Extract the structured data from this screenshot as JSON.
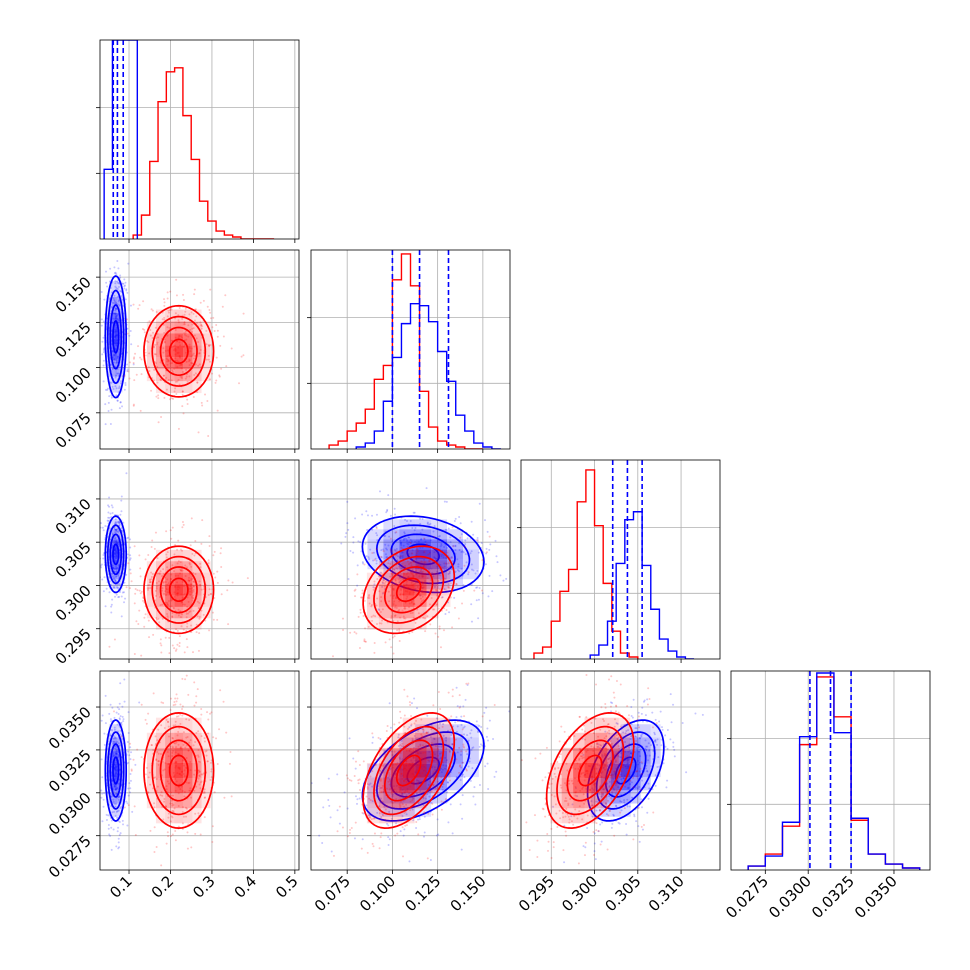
{
  "chart_data": {
    "type": "corner",
    "parameters": [
      {
        "ticks": [
          0.1,
          0.2,
          0.3,
          0.4,
          0.5
        ],
        "tick_labels": [
          "0.1",
          "0.2",
          "0.3",
          "0.4",
          "0.5"
        ],
        "range": [
          0.03,
          0.51
        ]
      },
      {
        "ticks": [
          0.075,
          0.1,
          0.125,
          0.15
        ],
        "tick_labels": [
          "0.075",
          "0.100",
          "0.125",
          "0.150"
        ],
        "range": [
          0.055,
          0.165
        ]
      },
      {
        "ticks": [
          0.295,
          0.3,
          0.305,
          0.31
        ],
        "tick_labels": [
          "0.295",
          "0.300",
          "0.305",
          "0.310"
        ],
        "range": [
          0.2915,
          0.3145
        ]
      },
      {
        "ticks": [
          0.0275,
          0.03,
          0.0325,
          0.035
        ],
        "tick_labels": [
          "0.0275",
          "0.0300",
          "0.0325",
          "0.0350"
        ],
        "range": [
          0.0255,
          0.0371
        ]
      }
    ],
    "series": [
      {
        "color": "#0000ff",
        "marginals": [
          {
            "edges": [
              0.04,
              0.06,
              0.08,
              0.1,
              0.12
            ],
            "counts": [
              0.35,
              1.0,
              1.0,
              1.0,
              0.0
            ]
          },
          {
            "edges": [
              0.08,
              0.085,
              0.09,
              0.095,
              0.1,
              0.105,
              0.11,
              0.115,
              0.12,
              0.125,
              0.13,
              0.135,
              0.14,
              0.145,
              0.15,
              0.155,
              0.16
            ],
            "counts": [
              0.01,
              0.03,
              0.09,
              0.24,
              0.46,
              0.63,
              0.73,
              0.72,
              0.64,
              0.49,
              0.34,
              0.17,
              0.09,
              0.03,
              0.01,
              0.0
            ]
          },
          {
            "edges": [
              0.2995,
              0.3005,
              0.3015,
              0.3025,
              0.3035,
              0.3045,
              0.3055,
              0.3065,
              0.3075,
              0.3085,
              0.3095,
              0.3105,
              0.3115
            ],
            "counts": [
              0.02,
              0.07,
              0.19,
              0.48,
              0.7,
              0.74,
              0.47,
              0.25,
              0.1,
              0.04,
              0.01,
              0.0
            ]
          },
          {
            "edges": [
              0.0265,
              0.0275,
              0.0285,
              0.0295,
              0.0305,
              0.0315,
              0.0325,
              0.0335,
              0.0345,
              0.0355,
              0.0365
            ],
            "counts": [
              0.02,
              0.07,
              0.24,
              0.67,
              0.99,
              0.69,
              0.26,
              0.08,
              0.03,
              0.01
            ]
          }
        ],
        "quantiles": [
          [
            0.062,
            0.072,
            0.086
          ],
          [
            0.1,
            0.115,
            0.131
          ],
          [
            0.3021,
            0.3038,
            0.3055
          ],
          [
            0.0301,
            0.0313,
            0.0325
          ]
        ],
        "centers": [
          0.068,
          0.117,
          0.3036,
          0.0313
        ],
        "spreads": [
          0.012,
          0.016,
          0.0021,
          0.0014
        ],
        "correlations": [
          [
            0,
            2,
            0.0
          ],
          [
            1,
            2,
            -0.2
          ],
          [
            1,
            3,
            0.5
          ],
          [
            2,
            3,
            0.45
          ]
        ]
      },
      {
        "color": "#ff0000",
        "marginals": [
          {
            "edges": [
              0.11,
              0.13,
              0.15,
              0.17,
              0.19,
              0.21,
              0.23,
              0.25,
              0.27,
              0.29,
              0.31,
              0.33,
              0.35,
              0.37,
              0.39,
              0.41,
              0.43,
              0.45
            ],
            "counts": [
              0.02,
              0.12,
              0.39,
              0.69,
              0.84,
              0.86,
              0.62,
              0.4,
              0.19,
              0.09,
              0.04,
              0.02,
              0.01,
              0.0,
              0.0,
              0.0,
              0.0
            ]
          },
          {
            "edges": [
              0.065,
              0.07,
              0.075,
              0.08,
              0.085,
              0.09,
              0.095,
              0.1,
              0.105,
              0.11,
              0.115,
              0.12,
              0.125,
              0.13,
              0.135,
              0.14,
              0.145,
              0.15
            ],
            "counts": [
              0.02,
              0.04,
              0.09,
              0.13,
              0.2,
              0.35,
              0.42,
              0.85,
              0.98,
              0.82,
              0.29,
              0.11,
              0.04,
              0.02,
              0.01,
              0.0,
              0.0
            ]
          },
          {
            "edges": [
              0.293,
              0.294,
              0.295,
              0.296,
              0.297,
              0.298,
              0.299,
              0.3,
              0.301,
              0.302,
              0.303,
              0.304,
              0.305
            ],
            "counts": [
              0.03,
              0.06,
              0.19,
              0.34,
              0.45,
              0.79,
              0.95,
              0.67,
              0.38,
              0.14,
              0.03,
              0.01
            ]
          },
          {
            "edges": [
              0.0265,
              0.0275,
              0.0285,
              0.0295,
              0.0305,
              0.0315,
              0.0325,
              0.0335,
              0.0345,
              0.0355,
              0.0365
            ],
            "counts": [
              0.02,
              0.08,
              0.22,
              0.63,
              0.97,
              0.77,
              0.25,
              0.08,
              0.03,
              0.01
            ]
          }
        ],
        "centers": [
          0.22,
          0.109,
          0.2995,
          0.0313
        ],
        "spreads": [
          0.04,
          0.012,
          0.0024,
          0.0016
        ],
        "correlations": [
          [
            0,
            2,
            0.0
          ],
          [
            1,
            2,
            0.3
          ],
          [
            1,
            3,
            0.5
          ],
          [
            2,
            3,
            0.45
          ]
        ]
      }
    ]
  }
}
